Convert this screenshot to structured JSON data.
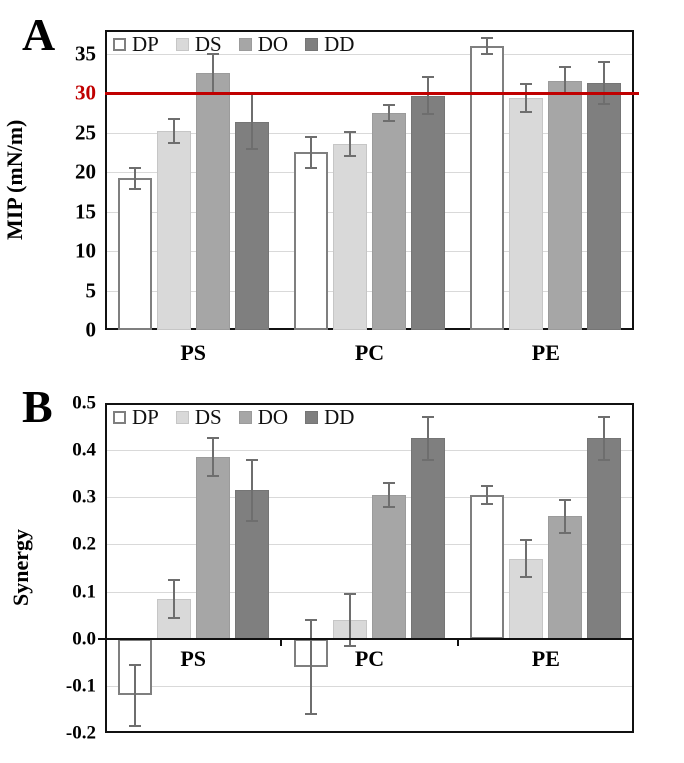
{
  "chart_data": [
    {
      "type": "bar",
      "panel_letter": "A",
      "ylabel": "MIP (mN/m)",
      "ylim": [
        0,
        38
      ],
      "grid": "horizontal",
      "legend_position": "top-left-inside",
      "yticks": [
        {
          "value": 35,
          "label": "35"
        },
        {
          "value": 30,
          "label": "30",
          "color": "#c00000"
        },
        {
          "value": 25,
          "label": "25"
        },
        {
          "value": 20,
          "label": "20"
        },
        {
          "value": 15,
          "label": "15"
        },
        {
          "value": 10,
          "label": "10"
        },
        {
          "value": 5,
          "label": "5"
        },
        {
          "value": 0,
          "label": "0"
        }
      ],
      "ref_line": {
        "value": 30,
        "color": "#c00000"
      },
      "categories": [
        "PS",
        "PC",
        "PE"
      ],
      "series": [
        {
          "name": "DP",
          "fill": "#ffffff",
          "border": "#7f7f7f",
          "values": [
            19.2,
            22.5,
            36.0
          ],
          "errors": [
            1.3,
            2.0,
            1.0
          ]
        },
        {
          "name": "DS",
          "fill": "#d9d9d9",
          "border": "#c6c6c6",
          "values": [
            25.2,
            23.6,
            29.4
          ],
          "errors": [
            1.5,
            1.5,
            1.8
          ]
        },
        {
          "name": "DO",
          "fill": "#a6a6a6",
          "border": "#9b9b9b",
          "values": [
            32.5,
            27.5,
            31.6
          ],
          "errors": [
            2.5,
            1.0,
            1.7
          ]
        },
        {
          "name": "DD",
          "fill": "#7f7f7f",
          "border": "#757575",
          "values": [
            26.4,
            29.7,
            31.3
          ],
          "errors": [
            3.5,
            2.3,
            2.7
          ]
        }
      ]
    },
    {
      "type": "bar",
      "panel_letter": "B",
      "ylabel": "Synergy",
      "ylim": [
        -0.2,
        0.5
      ],
      "grid": "horizontal",
      "legend_position": "top-left-inside",
      "yticks": [
        {
          "value": 0.5,
          "label": "0.5"
        },
        {
          "value": 0.4,
          "label": "0.4"
        },
        {
          "value": 0.3,
          "label": "0.3"
        },
        {
          "value": 0.2,
          "label": "0.2"
        },
        {
          "value": 0.1,
          "label": "0.1"
        },
        {
          "value": 0,
          "label": "0.0"
        },
        {
          "value": -0.1,
          "label": "-0.1"
        },
        {
          "value": -0.2,
          "label": "-0.2"
        }
      ],
      "categories": [
        "PS",
        "PC",
        "PE"
      ],
      "series": [
        {
          "name": "DP",
          "fill": "#ffffff",
          "border": "#7f7f7f",
          "values": [
            -0.12,
            -0.06,
            0.305
          ],
          "errors": [
            0.065,
            0.1,
            0.02
          ]
        },
        {
          "name": "DS",
          "fill": "#d9d9d9",
          "border": "#c6c6c6",
          "values": [
            0.085,
            0.04,
            0.17
          ],
          "errors": [
            0.04,
            0.055,
            0.04
          ]
        },
        {
          "name": "DO",
          "fill": "#a6a6a6",
          "border": "#9b9b9b",
          "values": [
            0.385,
            0.305,
            0.26
          ],
          "errors": [
            0.04,
            0.025,
            0.035
          ]
        },
        {
          "name": "DD",
          "fill": "#7f7f7f",
          "border": "#757575",
          "values": [
            0.315,
            0.425,
            0.425
          ],
          "errors": [
            0.065,
            0.045,
            0.045
          ]
        }
      ]
    }
  ]
}
